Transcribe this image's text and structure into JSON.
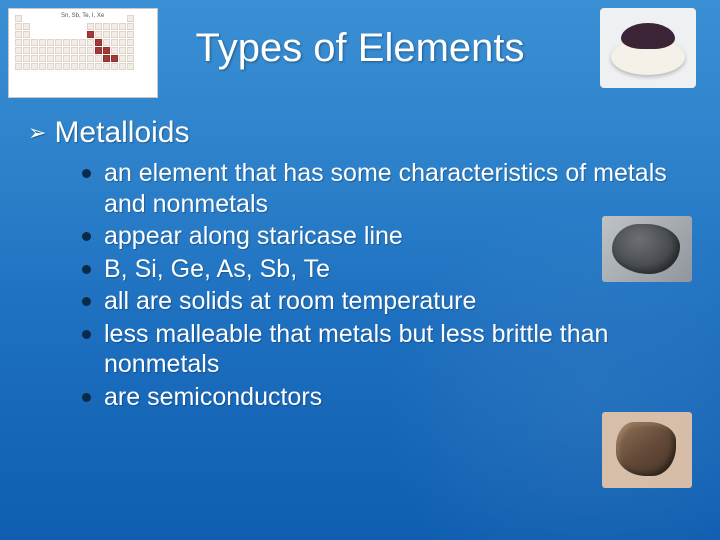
{
  "title": "Types of Elements",
  "heading_bullet": "➢",
  "heading": "Metalloids",
  "bullets": [
    "an element that has some characteristics of metals and nonmetals",
    "appear along staricase line",
    "B, Si, Ge, As, Sb, Te",
    "all are solids at room temperature",
    "less malleable that metals but less brittle than nonmetals",
    "are semiconductors"
  ],
  "images": {
    "top_left": "periodic-table-thumbnail",
    "top_right": "dark-powder-in-dish",
    "mid_right": "silicon-rock-sample",
    "bottom_right": "mineral-chunk-sample"
  },
  "colors": {
    "bg_top": "#3a8fd4",
    "bg_bottom": "#0f5eb0",
    "text": "#ffffff",
    "bullet_dot": "#0b2a4a"
  },
  "periodic_label": "Sn, Sb, Te, I, Xe"
}
